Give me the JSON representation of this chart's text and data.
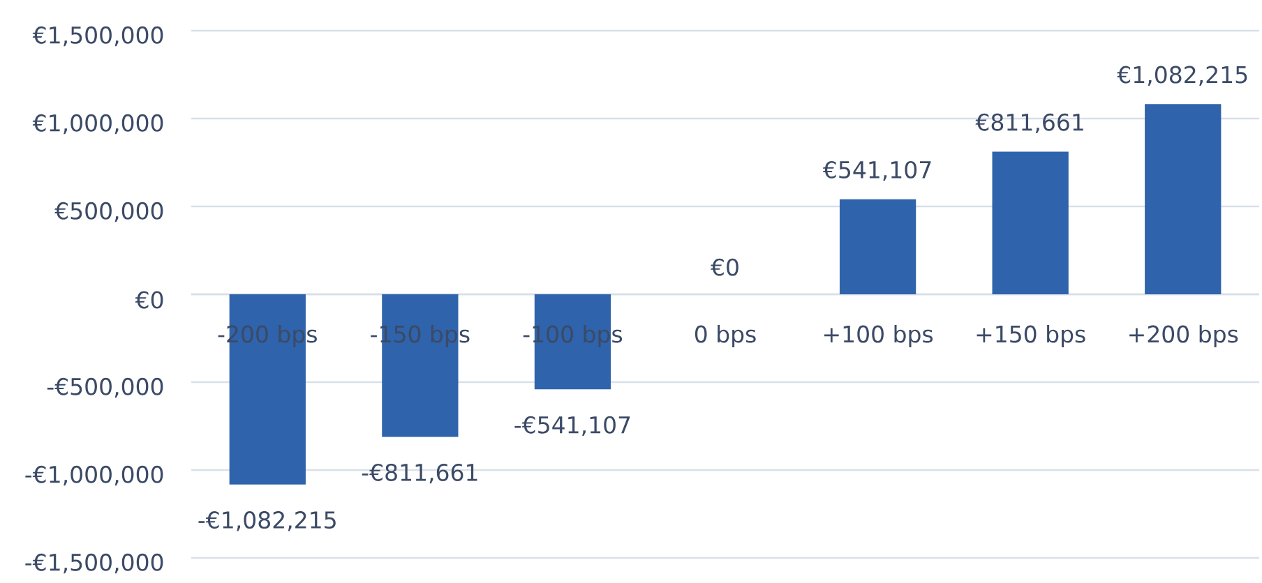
{
  "chart_data": {
    "type": "bar",
    "categories": [
      "-200 bps",
      "-150 bps",
      "-100 bps",
      "0 bps",
      "+100 bps",
      "+150 bps",
      "+200 bps"
    ],
    "values": [
      -1082215,
      -811661,
      -541107,
      0,
      541107,
      811661,
      1082215
    ],
    "value_labels": [
      "-€1,082,215",
      "-€811,661",
      "-€541,107",
      "€0",
      "€541,107",
      "€811,661",
      "€1,082,215"
    ],
    "color": "#2f63ab",
    "ylim": [
      -1500000,
      1500000
    ],
    "yticks": [
      {
        "value": -1500000,
        "label": "-€1,500,000"
      },
      {
        "value": -1000000,
        "label": "-€1,000,000"
      },
      {
        "value": -500000,
        "label": "-€500,000"
      },
      {
        "value": 0,
        "label": "€0"
      },
      {
        "value": 500000,
        "label": "€500,000"
      },
      {
        "value": 1000000,
        "label": "€1,000,000"
      },
      {
        "value": 1500000,
        "label": "€1,500,000"
      }
    ],
    "grid": "y"
  }
}
